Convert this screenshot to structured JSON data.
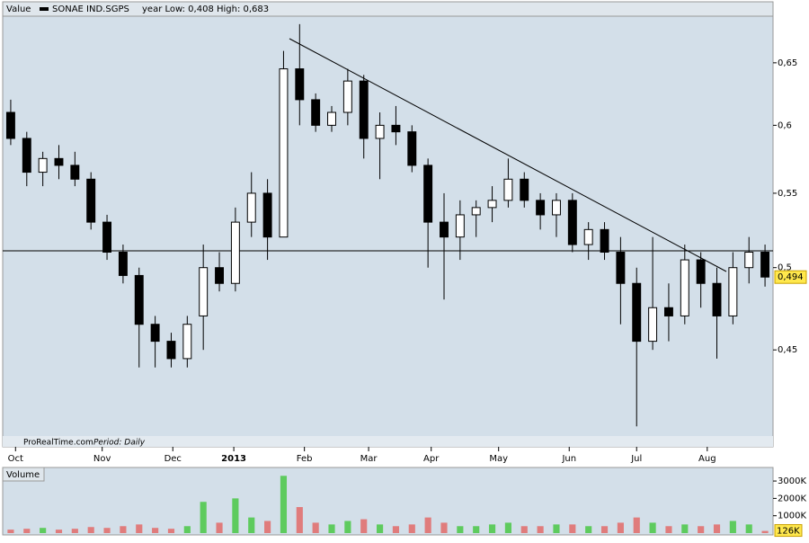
{
  "chart_data": [
    {
      "type": "candlestick",
      "title": "Value",
      "subtitle": "year Low: 0,408 High: 0,683",
      "footer": "ProRealTime.com",
      "period": "Period: Daily",
      "last_label": "0,494",
      "log_scale": true,
      "up_color": "#ffffff",
      "down_color": "#000000",
      "series": [
        {
          "name": "SONAE IND.SGPS",
          "color": "#000000",
          "open": [
            0.61,
            0.59,
            0.565,
            0.575,
            0.57,
            0.56,
            0.53,
            0.51,
            0.495,
            0.465,
            0.455,
            0.445,
            0.47,
            0.5,
            0.49,
            0.53,
            0.55,
            0.52,
            0.645,
            0.62,
            0.6,
            0.61,
            0.635,
            0.59,
            0.6,
            0.595,
            0.57,
            0.53,
            0.52,
            0.535,
            0.54,
            0.545,
            0.56,
            0.545,
            0.535,
            0.545,
            0.515,
            0.525,
            0.51,
            0.49,
            0.455,
            0.475,
            0.47,
            0.505,
            0.49,
            0.47,
            0.5,
            0.51
          ],
          "high": [
            0.62,
            0.595,
            0.58,
            0.585,
            0.58,
            0.565,
            0.535,
            0.515,
            0.5,
            0.47,
            0.46,
            0.47,
            0.515,
            0.51,
            0.54,
            0.565,
            0.56,
            0.66,
            0.683,
            0.625,
            0.615,
            0.645,
            0.64,
            0.61,
            0.615,
            0.6,
            0.575,
            0.55,
            0.545,
            0.545,
            0.555,
            0.575,
            0.565,
            0.55,
            0.55,
            0.55,
            0.53,
            0.53,
            0.52,
            0.5,
            0.52,
            0.49,
            0.515,
            0.51,
            0.5,
            0.51,
            0.52,
            0.515
          ],
          "low": [
            0.585,
            0.555,
            0.555,
            0.56,
            0.555,
            0.525,
            0.505,
            0.49,
            0.44,
            0.44,
            0.44,
            0.44,
            0.45,
            0.485,
            0.485,
            0.52,
            0.505,
            0.52,
            0.6,
            0.595,
            0.595,
            0.6,
            0.575,
            0.56,
            0.585,
            0.565,
            0.5,
            0.48,
            0.505,
            0.52,
            0.53,
            0.54,
            0.54,
            0.525,
            0.52,
            0.51,
            0.505,
            0.505,
            0.465,
            0.408,
            0.45,
            0.455,
            0.465,
            0.475,
            0.445,
            0.465,
            0.49,
            0.488
          ],
          "close": [
            0.59,
            0.565,
            0.575,
            0.57,
            0.56,
            0.53,
            0.51,
            0.495,
            0.465,
            0.455,
            0.445,
            0.465,
            0.5,
            0.49,
            0.53,
            0.55,
            0.52,
            0.645,
            0.62,
            0.6,
            0.61,
            0.635,
            0.59,
            0.6,
            0.595,
            0.57,
            0.53,
            0.52,
            0.535,
            0.54,
            0.545,
            0.56,
            0.545,
            0.535,
            0.545,
            0.515,
            0.525,
            0.51,
            0.49,
            0.455,
            0.475,
            0.47,
            0.505,
            0.49,
            0.47,
            0.5,
            0.51,
            0.494
          ]
        }
      ],
      "xlim": [
        -0.5,
        47.5
      ],
      "xticks": [
        {
          "value": 0.3,
          "label": "Oct"
        },
        {
          "value": 5.7,
          "label": "Nov"
        },
        {
          "value": 10.1,
          "label": "Dec"
        },
        {
          "value": 13.9,
          "label": "2013"
        },
        {
          "value": 18.3,
          "label": "Feb"
        },
        {
          "value": 22.3,
          "label": "Mar"
        },
        {
          "value": 26.2,
          "label": "Apr"
        },
        {
          "value": 30.4,
          "label": "May"
        },
        {
          "value": 34.8,
          "label": "Jun"
        },
        {
          "value": 39.0,
          "label": "Jul"
        },
        {
          "value": 43.4,
          "label": "Aug"
        }
      ],
      "ylim": [
        0.403,
        0.69
      ],
      "yticks": [
        {
          "value": 0.45,
          "label": "0,45"
        },
        {
          "value": 0.5,
          "label": "0,5"
        },
        {
          "value": 0.55,
          "label": "0,55"
        },
        {
          "value": 0.6,
          "label": "0,6"
        },
        {
          "value": 0.65,
          "label": "0,65"
        }
      ]
    },
    {
      "type": "bar",
      "title": "Volume",
      "last_label": "126K",
      "up_color": "#5ecb5e",
      "down_color": "#e07c7c",
      "values": [
        200,
        250,
        300,
        200,
        250,
        350,
        300,
        400,
        500,
        300,
        250,
        400,
        1800,
        600,
        2000,
        900,
        700,
        3300,
        1500,
        600,
        500,
        700,
        800,
        500,
        400,
        500,
        900,
        600,
        400,
        400,
        500,
        600,
        400,
        400,
        500,
        500,
        400,
        400,
        600,
        900,
        600,
        400,
        500,
        400,
        500,
        700,
        500,
        126
      ],
      "xlim": [
        -0.5,
        47.5
      ],
      "ylim": [
        0,
        3780
      ],
      "yticks": [
        {
          "value": 1000,
          "label": "1000K"
        },
        {
          "value": 2000,
          "label": "2000K"
        },
        {
          "value": 3000,
          "label": "3000K"
        }
      ]
    }
  ]
}
